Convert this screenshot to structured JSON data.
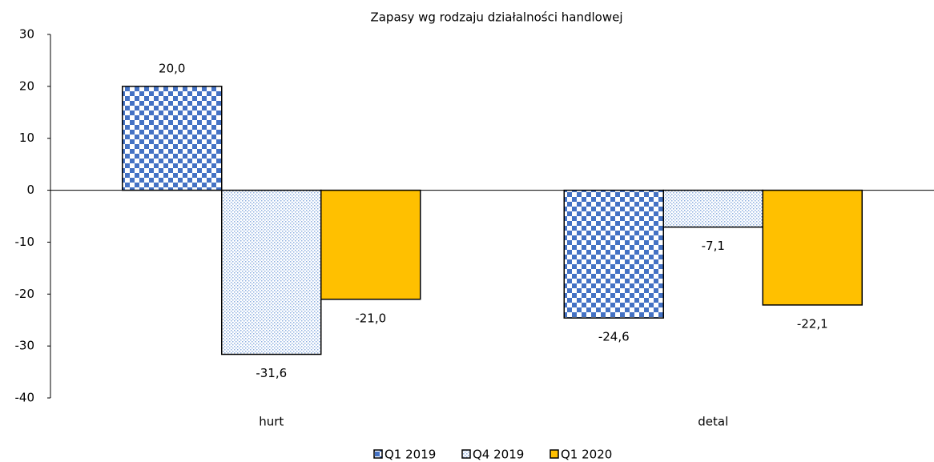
{
  "chart_data": {
    "type": "bar",
    "title": "Zapasy wg rodzaju działalności handlowej",
    "categories": [
      "hurt",
      "detal"
    ],
    "series": [
      {
        "name": "Q1 2019",
        "color": "#4472c4",
        "pattern": "checker",
        "values": [
          20.0,
          -24.6
        ],
        "value_labels": [
          "20,0",
          "-24,6"
        ]
      },
      {
        "name": "Q4 2019",
        "color": "#8fb0e0",
        "pattern": "dots",
        "values": [
          -31.6,
          -7.1
        ],
        "value_labels": [
          "-31,6",
          "-7,1"
        ]
      },
      {
        "name": "Q1 2020",
        "color": "#ffc000",
        "pattern": "solid",
        "values": [
          -21.0,
          -22.1
        ],
        "value_labels": [
          "-21,0",
          "-22,1"
        ]
      }
    ],
    "ylim": [
      -40,
      30
    ],
    "yticks": [
      -40,
      -30,
      -20,
      -10,
      0,
      10,
      20,
      30
    ],
    "legend": "bottom"
  }
}
